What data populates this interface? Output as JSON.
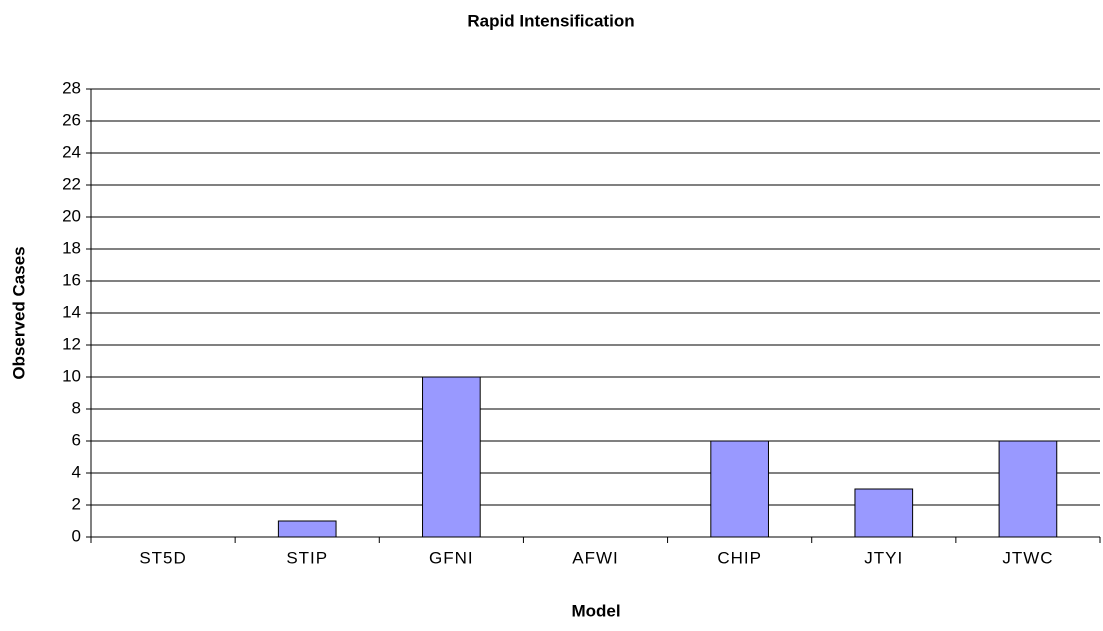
{
  "chart_data": {
    "type": "bar",
    "title": "Rapid Intensification",
    "x_label": "Model",
    "y_label": "Observed Cases",
    "categories": [
      "ST5D",
      "STIP",
      "GFNI",
      "AFWI",
      "CHIP",
      "JTYI",
      "JTWC"
    ],
    "values": [
      0,
      1,
      10,
      0,
      6,
      3,
      6
    ],
    "color": "#9999ff",
    "ylim": [
      0,
      28
    ],
    "yticks": [
      0,
      2,
      4,
      6,
      8,
      10,
      12,
      14,
      16,
      18,
      20,
      22,
      24,
      26,
      28
    ],
    "grid": true
  }
}
